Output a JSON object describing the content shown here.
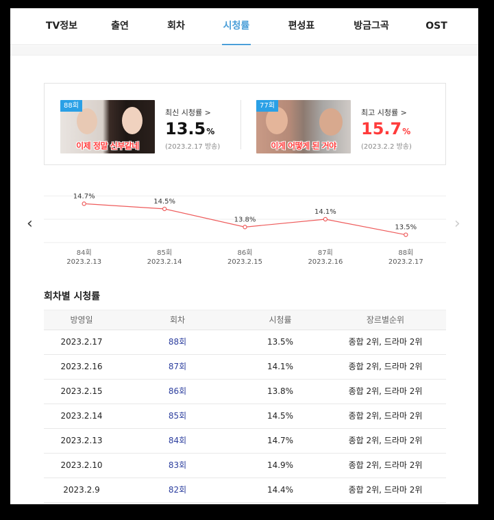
{
  "tabs": [
    {
      "label": "TV정보",
      "active": false
    },
    {
      "label": "출연",
      "active": false
    },
    {
      "label": "회차",
      "active": false
    },
    {
      "label": "시청률",
      "active": true
    },
    {
      "label": "편성표",
      "active": false
    },
    {
      "label": "방금그곡",
      "active": false
    },
    {
      "label": "OST",
      "active": false
    }
  ],
  "latest": {
    "episode_badge": "88회",
    "thumb_caption": "이제 정말 신부같네",
    "label": "최신 시청률 >",
    "value": "13.5",
    "unit": "%",
    "date": "(2023.2.17 방송)"
  },
  "best": {
    "episode_badge": "77회",
    "thumb_caption": "이게 어떻게 된 거야",
    "label": "최고 시청률 >",
    "value": "15.7",
    "unit": "%",
    "date": "(2023.2.2 방송)"
  },
  "colors": {
    "accent": "#4a9ed8",
    "line": "#ee5a5a",
    "best": "#ff3b3b",
    "episode_link": "#2c3e9e"
  },
  "chart_data": {
    "type": "line",
    "x": [
      "84회",
      "85회",
      "86회",
      "87회",
      "88회"
    ],
    "dates": [
      "2023.2.13",
      "2023.2.14",
      "2023.2.15",
      "2023.2.16",
      "2023.2.17"
    ],
    "values": [
      14.7,
      14.5,
      13.8,
      14.1,
      13.5
    ],
    "labels": [
      "14.7%",
      "14.5%",
      "13.8%",
      "14.1%",
      "13.5%"
    ],
    "ylim": [
      13.2,
      15.0
    ],
    "grid": true
  },
  "table": {
    "title": "회차별 시청률",
    "headers": [
      "방영일",
      "회차",
      "시청률",
      "장르별순위"
    ],
    "rows": [
      {
        "date": "2023.2.17",
        "episode": "88회",
        "rating": "13.5%",
        "rank": "종합 2위, 드라마 2위"
      },
      {
        "date": "2023.2.16",
        "episode": "87회",
        "rating": "14.1%",
        "rank": "종합 2위, 드라마 2위"
      },
      {
        "date": "2023.2.15",
        "episode": "86회",
        "rating": "13.8%",
        "rank": "종합 2위, 드라마 2위"
      },
      {
        "date": "2023.2.14",
        "episode": "85회",
        "rating": "14.5%",
        "rank": "종합 2위, 드라마 2위"
      },
      {
        "date": "2023.2.13",
        "episode": "84회",
        "rating": "14.7%",
        "rank": "종합 2위, 드라마 2위"
      },
      {
        "date": "2023.2.10",
        "episode": "83회",
        "rating": "14.9%",
        "rank": "종합 2위, 드라마 2위"
      },
      {
        "date": "2023.2.9",
        "episode": "82회",
        "rating": "14.4%",
        "rank": "종합 2위, 드라마 2위"
      }
    ]
  },
  "icons": {
    "prev": "chevron-left-icon",
    "next": "chevron-right-icon"
  }
}
